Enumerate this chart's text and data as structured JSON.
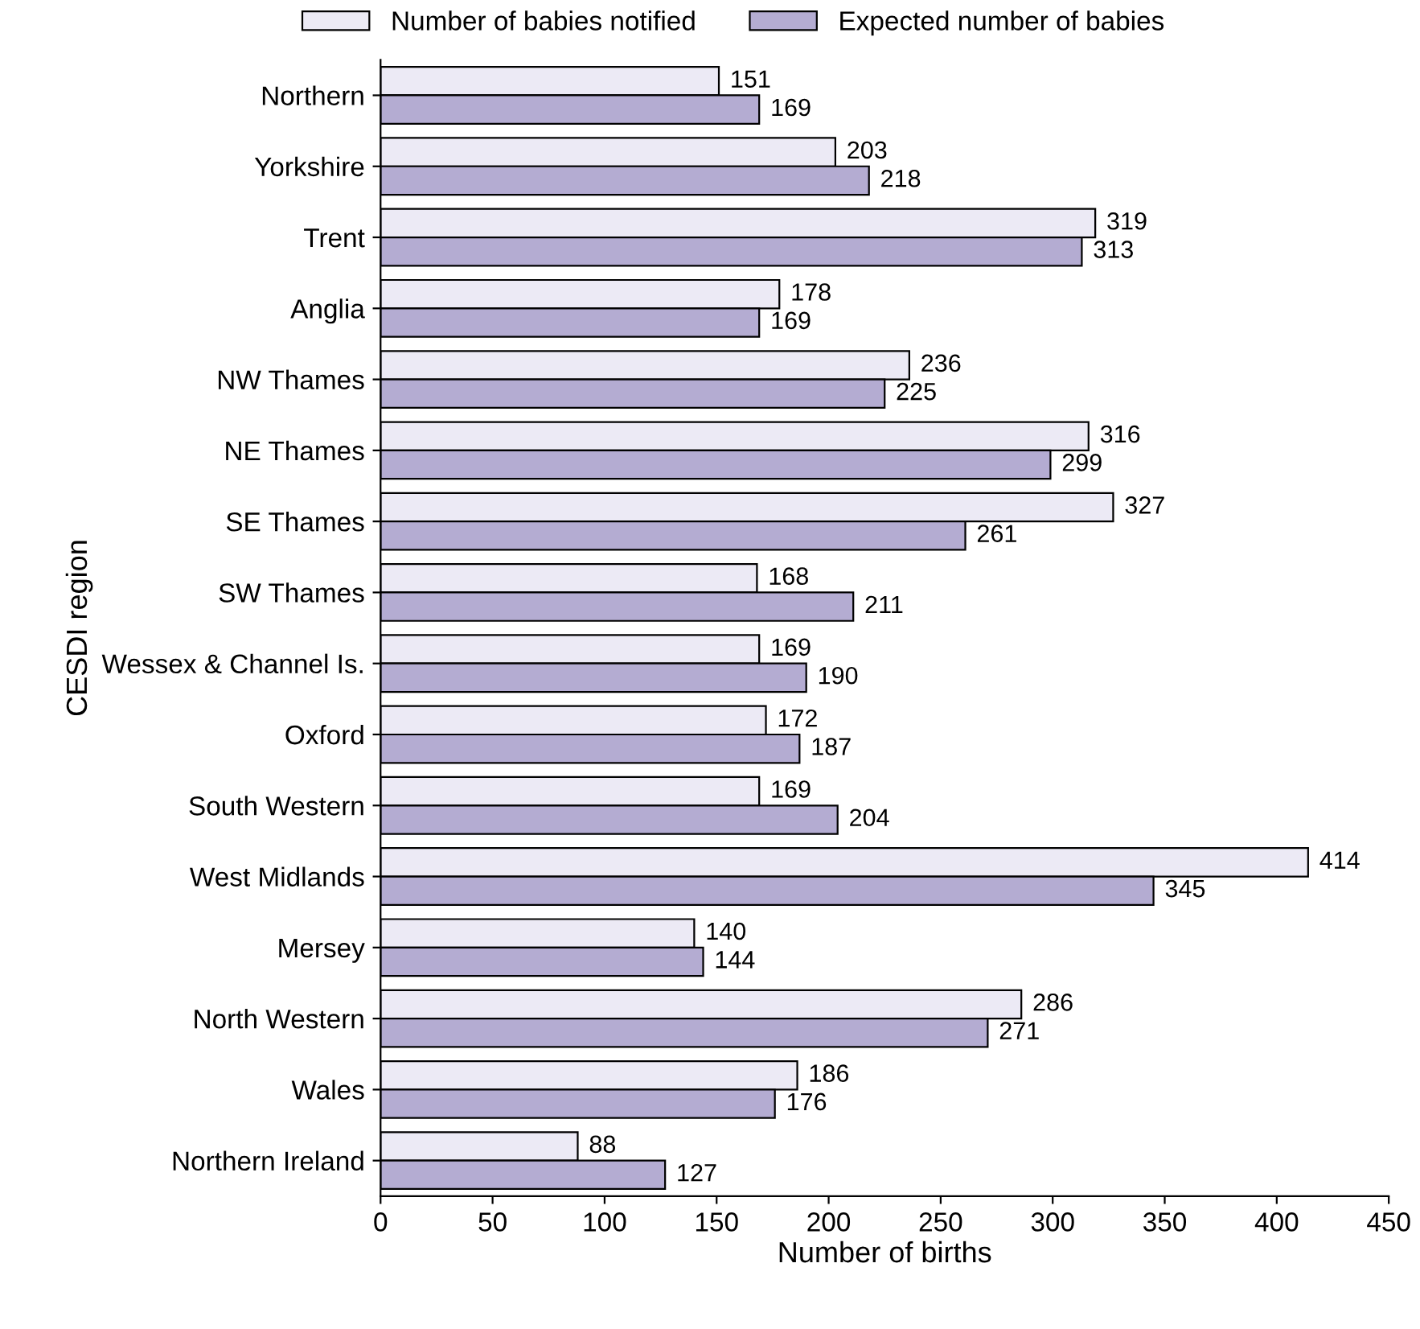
{
  "chart_data": {
    "type": "bar",
    "orientation": "horizontal",
    "xlabel": "Number of births",
    "ylabel": "CESDI region",
    "categories": [
      "Northern",
      "Yorkshire",
      "Trent",
      "Anglia",
      "NW Thames",
      "NE Thames",
      "SE Thames",
      "SW Thames",
      "Wessex & Channel Is.",
      "Oxford",
      "South Western",
      "West Midlands",
      "Mersey",
      "North Western",
      "Wales",
      "Northern Ireland"
    ],
    "series": [
      {
        "name": "Number of babies notified",
        "color": "#eceaf5",
        "values": [
          151,
          203,
          319,
          178,
          236,
          316,
          327,
          168,
          169,
          172,
          169,
          414,
          140,
          286,
          186,
          88
        ]
      },
      {
        "name": "Expected number of babies",
        "color": "#b4acd2",
        "values": [
          169,
          218,
          313,
          169,
          225,
          299,
          261,
          211,
          190,
          187,
          204,
          345,
          144,
          271,
          176,
          127
        ]
      }
    ],
    "xlim": [
      0,
      450
    ],
    "xticks": [
      0,
      50,
      100,
      150,
      200,
      250,
      300,
      350,
      400,
      450
    ],
    "data_labels": true,
    "legend": "top",
    "grid": false
  }
}
